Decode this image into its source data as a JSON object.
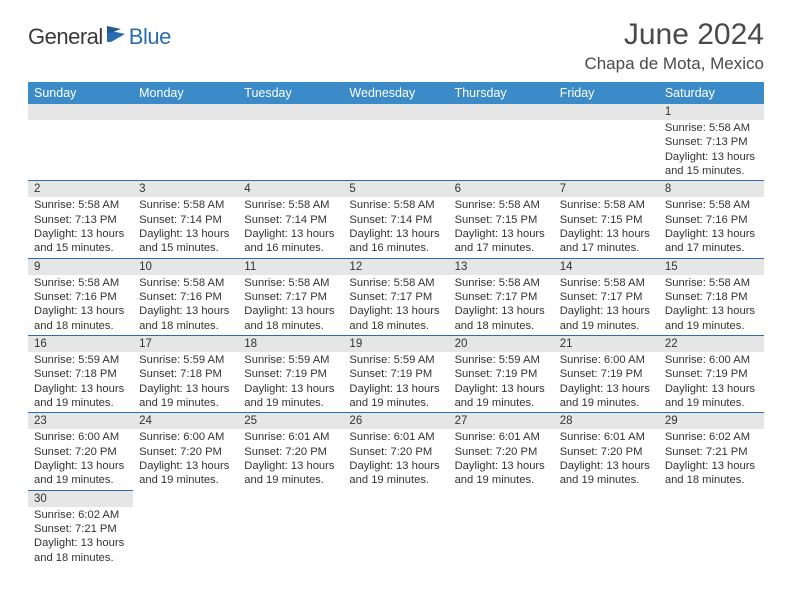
{
  "brand": {
    "part1": "General",
    "part2": "Blue"
  },
  "title": "June 2024",
  "location": "Chapa de Mota, Mexico",
  "colors": {
    "header_bg": "#3b8bc8",
    "header_text": "#ffffff",
    "daynum_bg": "#e6e6e6",
    "rule": "#2a6db0",
    "body_text": "#333333",
    "title_text": "#4a4a4a"
  },
  "day_headers": [
    "Sunday",
    "Monday",
    "Tuesday",
    "Wednesday",
    "Thursday",
    "Friday",
    "Saturday"
  ],
  "weeks": [
    [
      {
        "n": "",
        "sr": "",
        "ss": "",
        "dl": ""
      },
      {
        "n": "",
        "sr": "",
        "ss": "",
        "dl": ""
      },
      {
        "n": "",
        "sr": "",
        "ss": "",
        "dl": ""
      },
      {
        "n": "",
        "sr": "",
        "ss": "",
        "dl": ""
      },
      {
        "n": "",
        "sr": "",
        "ss": "",
        "dl": ""
      },
      {
        "n": "",
        "sr": "",
        "ss": "",
        "dl": ""
      },
      {
        "n": "1",
        "sr": "Sunrise: 5:58 AM",
        "ss": "Sunset: 7:13 PM",
        "dl": "Daylight: 13 hours and 15 minutes."
      }
    ],
    [
      {
        "n": "2",
        "sr": "Sunrise: 5:58 AM",
        "ss": "Sunset: 7:13 PM",
        "dl": "Daylight: 13 hours and 15 minutes."
      },
      {
        "n": "3",
        "sr": "Sunrise: 5:58 AM",
        "ss": "Sunset: 7:14 PM",
        "dl": "Daylight: 13 hours and 15 minutes."
      },
      {
        "n": "4",
        "sr": "Sunrise: 5:58 AM",
        "ss": "Sunset: 7:14 PM",
        "dl": "Daylight: 13 hours and 16 minutes."
      },
      {
        "n": "5",
        "sr": "Sunrise: 5:58 AM",
        "ss": "Sunset: 7:14 PM",
        "dl": "Daylight: 13 hours and 16 minutes."
      },
      {
        "n": "6",
        "sr": "Sunrise: 5:58 AM",
        "ss": "Sunset: 7:15 PM",
        "dl": "Daylight: 13 hours and 17 minutes."
      },
      {
        "n": "7",
        "sr": "Sunrise: 5:58 AM",
        "ss": "Sunset: 7:15 PM",
        "dl": "Daylight: 13 hours and 17 minutes."
      },
      {
        "n": "8",
        "sr": "Sunrise: 5:58 AM",
        "ss": "Sunset: 7:16 PM",
        "dl": "Daylight: 13 hours and 17 minutes."
      }
    ],
    [
      {
        "n": "9",
        "sr": "Sunrise: 5:58 AM",
        "ss": "Sunset: 7:16 PM",
        "dl": "Daylight: 13 hours and 18 minutes."
      },
      {
        "n": "10",
        "sr": "Sunrise: 5:58 AM",
        "ss": "Sunset: 7:16 PM",
        "dl": "Daylight: 13 hours and 18 minutes."
      },
      {
        "n": "11",
        "sr": "Sunrise: 5:58 AM",
        "ss": "Sunset: 7:17 PM",
        "dl": "Daylight: 13 hours and 18 minutes."
      },
      {
        "n": "12",
        "sr": "Sunrise: 5:58 AM",
        "ss": "Sunset: 7:17 PM",
        "dl": "Daylight: 13 hours and 18 minutes."
      },
      {
        "n": "13",
        "sr": "Sunrise: 5:58 AM",
        "ss": "Sunset: 7:17 PM",
        "dl": "Daylight: 13 hours and 18 minutes."
      },
      {
        "n": "14",
        "sr": "Sunrise: 5:58 AM",
        "ss": "Sunset: 7:17 PM",
        "dl": "Daylight: 13 hours and 19 minutes."
      },
      {
        "n": "15",
        "sr": "Sunrise: 5:58 AM",
        "ss": "Sunset: 7:18 PM",
        "dl": "Daylight: 13 hours and 19 minutes."
      }
    ],
    [
      {
        "n": "16",
        "sr": "Sunrise: 5:59 AM",
        "ss": "Sunset: 7:18 PM",
        "dl": "Daylight: 13 hours and 19 minutes."
      },
      {
        "n": "17",
        "sr": "Sunrise: 5:59 AM",
        "ss": "Sunset: 7:18 PM",
        "dl": "Daylight: 13 hours and 19 minutes."
      },
      {
        "n": "18",
        "sr": "Sunrise: 5:59 AM",
        "ss": "Sunset: 7:19 PM",
        "dl": "Daylight: 13 hours and 19 minutes."
      },
      {
        "n": "19",
        "sr": "Sunrise: 5:59 AM",
        "ss": "Sunset: 7:19 PM",
        "dl": "Daylight: 13 hours and 19 minutes."
      },
      {
        "n": "20",
        "sr": "Sunrise: 5:59 AM",
        "ss": "Sunset: 7:19 PM",
        "dl": "Daylight: 13 hours and 19 minutes."
      },
      {
        "n": "21",
        "sr": "Sunrise: 6:00 AM",
        "ss": "Sunset: 7:19 PM",
        "dl": "Daylight: 13 hours and 19 minutes."
      },
      {
        "n": "22",
        "sr": "Sunrise: 6:00 AM",
        "ss": "Sunset: 7:19 PM",
        "dl": "Daylight: 13 hours and 19 minutes."
      }
    ],
    [
      {
        "n": "23",
        "sr": "Sunrise: 6:00 AM",
        "ss": "Sunset: 7:20 PM",
        "dl": "Daylight: 13 hours and 19 minutes."
      },
      {
        "n": "24",
        "sr": "Sunrise: 6:00 AM",
        "ss": "Sunset: 7:20 PM",
        "dl": "Daylight: 13 hours and 19 minutes."
      },
      {
        "n": "25",
        "sr": "Sunrise: 6:01 AM",
        "ss": "Sunset: 7:20 PM",
        "dl": "Daylight: 13 hours and 19 minutes."
      },
      {
        "n": "26",
        "sr": "Sunrise: 6:01 AM",
        "ss": "Sunset: 7:20 PM",
        "dl": "Daylight: 13 hours and 19 minutes."
      },
      {
        "n": "27",
        "sr": "Sunrise: 6:01 AM",
        "ss": "Sunset: 7:20 PM",
        "dl": "Daylight: 13 hours and 19 minutes."
      },
      {
        "n": "28",
        "sr": "Sunrise: 6:01 AM",
        "ss": "Sunset: 7:20 PM",
        "dl": "Daylight: 13 hours and 19 minutes."
      },
      {
        "n": "29",
        "sr": "Sunrise: 6:02 AM",
        "ss": "Sunset: 7:21 PM",
        "dl": "Daylight: 13 hours and 18 minutes."
      }
    ],
    [
      {
        "n": "30",
        "sr": "Sunrise: 6:02 AM",
        "ss": "Sunset: 7:21 PM",
        "dl": "Daylight: 13 hours and 18 minutes."
      },
      {
        "n": "",
        "sr": "",
        "ss": "",
        "dl": ""
      },
      {
        "n": "",
        "sr": "",
        "ss": "",
        "dl": ""
      },
      {
        "n": "",
        "sr": "",
        "ss": "",
        "dl": ""
      },
      {
        "n": "",
        "sr": "",
        "ss": "",
        "dl": ""
      },
      {
        "n": "",
        "sr": "",
        "ss": "",
        "dl": ""
      },
      {
        "n": "",
        "sr": "",
        "ss": "",
        "dl": ""
      }
    ]
  ]
}
